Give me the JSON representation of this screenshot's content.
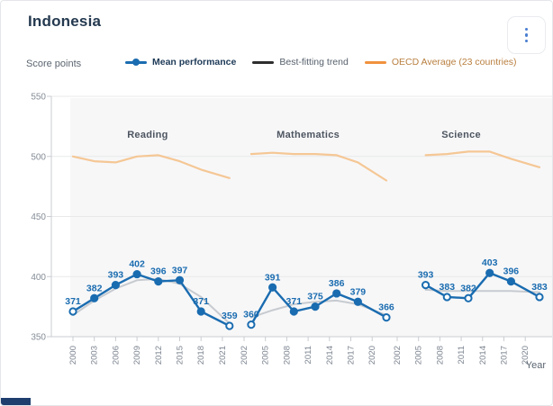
{
  "header": {
    "title": "Indonesia",
    "menu_icon": "kebab-vertical-dots"
  },
  "legend": [
    {
      "label": "Mean performance",
      "color": "#1a6cb0",
      "type": "line-dot"
    },
    {
      "label": "Best-fitting trend",
      "color": "#2e2e2e",
      "type": "line"
    },
    {
      "label": "OECD Average (23 countries)",
      "color": "#f0923e",
      "type": "line"
    }
  ],
  "chart_data": {
    "type": "line",
    "title": "Indonesia",
    "ylabel": "Score points",
    "xlabel": "Year",
    "ylim": [
      350,
      550
    ],
    "yticks": [
      350,
      400,
      450,
      500,
      550
    ],
    "grid": true,
    "colors": {
      "mean": "#1a6cb0",
      "trend": "#c7cbd0",
      "oecd": "#f5c795",
      "grid": "#e8e9ea",
      "axis": "#c9ccd1",
      "plot_bg": "#f7f7f8",
      "data_label": "#1a6cb0"
    },
    "sections": [
      {
        "name": "Reading",
        "tick_years": [
          2000,
          2003,
          2006,
          2009,
          2012,
          2015,
          2018,
          2021
        ],
        "mean": {
          "years": [
            2000,
            2003,
            2006,
            2009,
            2012,
            2015,
            2018,
            2022
          ],
          "values": [
            371,
            382,
            393,
            402,
            396,
            397,
            371,
            359
          ],
          "open_markers": [
            2000,
            2022
          ]
        },
        "trend": {
          "years": [
            2000,
            2003,
            2006,
            2009,
            2012,
            2015,
            2018,
            2022
          ],
          "values": [
            368,
            380,
            390,
            397,
            398,
            394,
            383,
            361
          ]
        },
        "oecd": {
          "years": [
            2000,
            2003,
            2006,
            2009,
            2012,
            2015,
            2018,
            2022
          ],
          "values": [
            500,
            496,
            495,
            500,
            501,
            496,
            489,
            482
          ]
        }
      },
      {
        "name": "Mathematics",
        "tick_years": [
          2002,
          2005,
          2008,
          2011,
          2014,
          2017,
          2020
        ],
        "mean": {
          "years": [
            2003,
            2006,
            2009,
            2012,
            2015,
            2018,
            2022
          ],
          "values": [
            360,
            391,
            371,
            375,
            386,
            379,
            366
          ],
          "open_markers": [
            2003,
            2022
          ]
        },
        "trend": {
          "years": [
            2003,
            2006,
            2009,
            2012,
            2015,
            2018,
            2022
          ],
          "values": [
            366,
            372,
            377,
            379,
            380,
            377,
            368
          ]
        },
        "oecd": {
          "years": [
            2003,
            2006,
            2009,
            2012,
            2015,
            2018,
            2022
          ],
          "values": [
            502,
            503,
            502,
            502,
            501,
            495,
            480
          ]
        }
      },
      {
        "name": "Science",
        "tick_years": [
          2002,
          2005,
          2008,
          2011,
          2014,
          2017,
          2020
        ],
        "mean": {
          "years": [
            2006,
            2009,
            2012,
            2015,
            2018,
            2022
          ],
          "values": [
            393,
            383,
            382,
            403,
            396,
            383
          ],
          "open_markers": [
            2006,
            2009,
            2012,
            2022
          ]
        },
        "trend": {
          "years": [
            2006,
            2009,
            2012,
            2015,
            2018,
            2022
          ],
          "values": [
            389,
            388,
            388,
            388,
            388,
            387
          ]
        },
        "oecd": {
          "years": [
            2006,
            2009,
            2012,
            2015,
            2018,
            2022
          ],
          "values": [
            501,
            502,
            504,
            504,
            498,
            491
          ]
        }
      }
    ]
  }
}
